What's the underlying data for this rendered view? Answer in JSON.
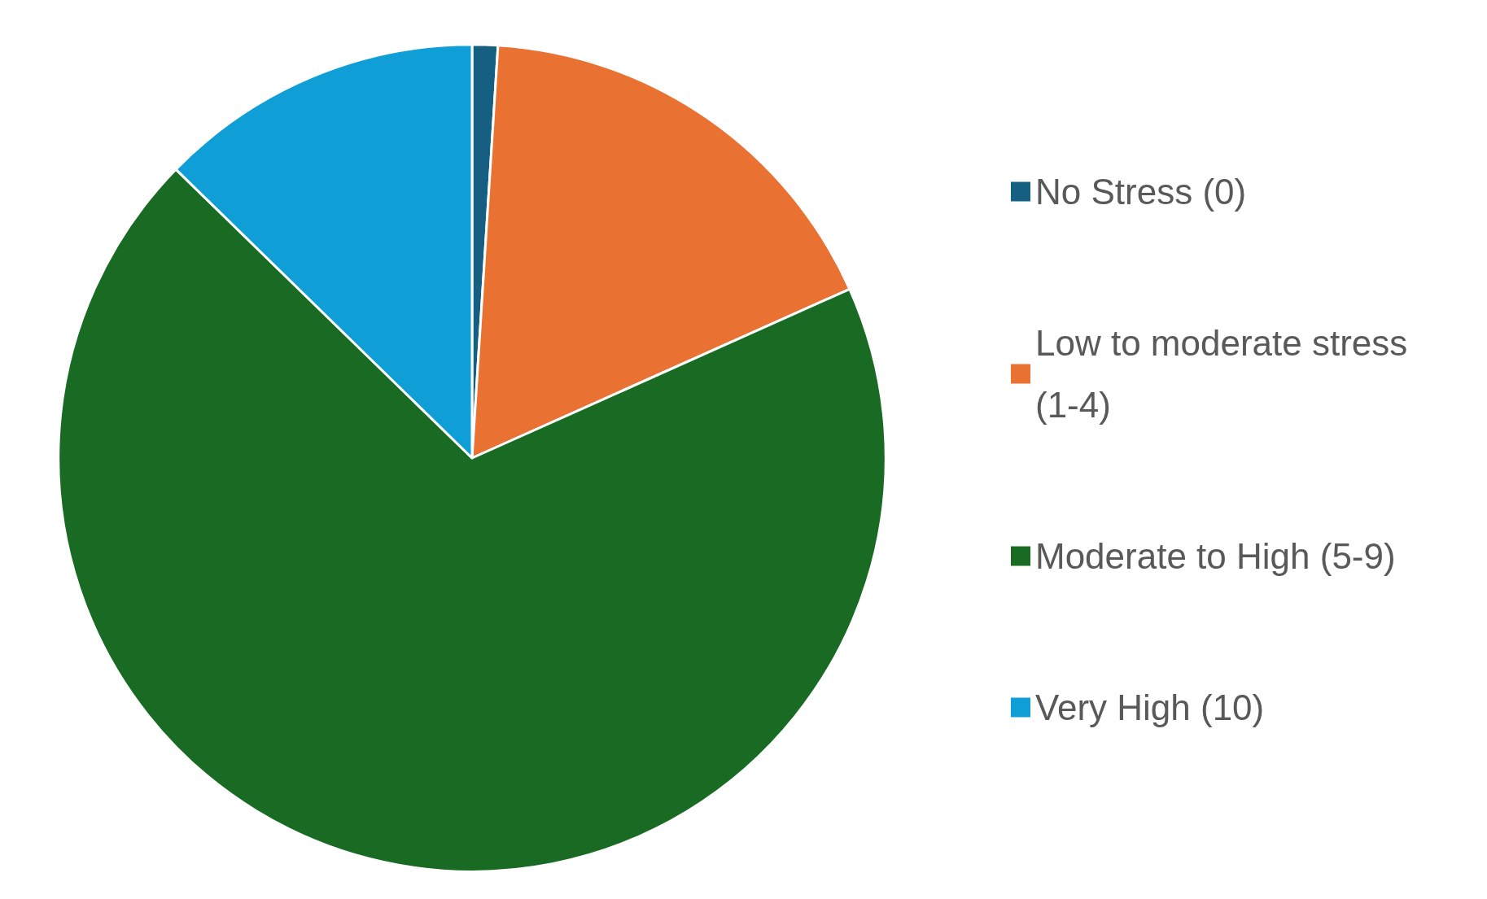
{
  "chart_data": {
    "type": "pie",
    "categories": [
      "No Stress (0)",
      "Low to moderate stress (1-4)",
      "Moderate to High (5-9)",
      "Very High (10)"
    ],
    "values": [
      1,
      17.3,
      69,
      12.7
    ],
    "colors": [
      "#156082",
      "#e97132",
      "#196b24",
      "#0f9ed5"
    ],
    "legend": "right"
  }
}
